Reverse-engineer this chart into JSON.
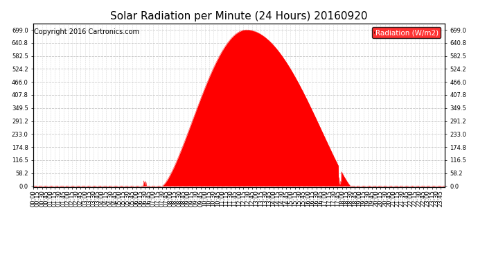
{
  "title": "Solar Radiation per Minute (24 Hours) 20160920",
  "copyright_text": "Copyright 2016 Cartronics.com",
  "legend_label": "Radiation (W/m2)",
  "fill_color": "#FF0000",
  "background_color": "#FFFFFF",
  "grid_color": "#BBBBBB",
  "ytick_labels": [
    "0.0",
    "58.2",
    "116.5",
    "174.8",
    "233.0",
    "291.2",
    "349.5",
    "407.8",
    "466.0",
    "524.2",
    "582.5",
    "640.8",
    "699.0"
  ],
  "ytick_values": [
    0.0,
    58.2,
    116.5,
    174.8,
    233.0,
    291.2,
    349.5,
    407.8,
    466.0,
    524.2,
    582.5,
    640.8,
    699.0
  ],
  "ymax": 728.0,
  "ymin": -5.0,
  "sunrise": 450,
  "sunset": 1110,
  "peak_minute": 745,
  "peak_value": 699.0,
  "total_minutes": 1440,
  "xtick_step": 15,
  "title_fontsize": 11,
  "tick_fontsize": 6,
  "legend_fontsize": 7.5,
  "copyright_fontsize": 7
}
